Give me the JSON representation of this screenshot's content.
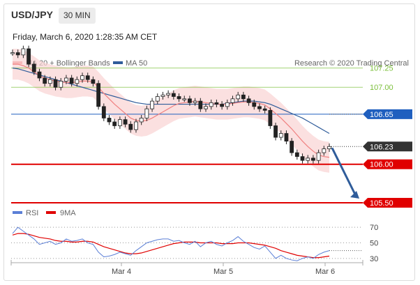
{
  "header": {
    "symbol": "USD/JPY",
    "timeframe": "30 MIN",
    "timestamp": "Friday, March 6, 2020 1:28:35 AM CET"
  },
  "legend": {
    "items": [
      {
        "label": "MA 20 + Bollinger Bands",
        "color": "#f08080"
      },
      {
        "label": "MA 50",
        "color": "#2f5c9a"
      }
    ],
    "credit": "Research © 2020 Trading Central"
  },
  "rsi_legend": {
    "items": [
      {
        "label": "RSI",
        "color": "#5b7fd6"
      },
      {
        "label": "9MA",
        "color": "#e00000"
      }
    ]
  },
  "chart_data": [
    {
      "type": "line",
      "pane": "price",
      "x_ticks": [
        "Mar 4",
        "Mar 5",
        "Mar 6"
      ],
      "ylim": [
        105.4,
        107.5
      ],
      "levels": [
        {
          "value": 107.25,
          "label": "107.25",
          "color": "#7bbf3a",
          "style": "thin"
        },
        {
          "value": 107.0,
          "label": "107.00",
          "color": "#7bbf3a",
          "style": "thin"
        },
        {
          "value": 106.65,
          "label": "106.65",
          "color": "#1f5fbf",
          "style": "tag"
        },
        {
          "value": 106.23,
          "label": "106.23",
          "color": "#333333",
          "style": "tag"
        },
        {
          "value": 106.0,
          "label": "106.00",
          "color": "#e00000",
          "style": "thick"
        },
        {
          "value": 105.5,
          "label": "105.50",
          "color": "#e00000",
          "style": "thick"
        }
      ],
      "close": [
        107.45,
        107.42,
        107.5,
        107.3,
        107.2,
        107.12,
        107.05,
        107.1,
        107.0,
        107.08,
        107.12,
        107.05,
        107.1,
        107.15,
        107.1,
        107.05,
        106.75,
        106.6,
        106.55,
        106.5,
        106.58,
        106.52,
        106.45,
        106.55,
        106.6,
        106.72,
        106.82,
        106.88,
        106.9,
        106.92,
        106.88,
        106.85,
        106.85,
        106.8,
        106.82,
        106.72,
        106.75,
        106.8,
        106.78,
        106.75,
        106.8,
        106.85,
        106.9,
        106.85,
        106.8,
        106.75,
        106.72,
        106.7,
        106.5,
        106.35,
        106.4,
        106.3,
        106.15,
        106.1,
        106.05,
        106.08,
        106.05,
        106.15,
        106.2,
        106.23
      ],
      "ma20": [
        107.3,
        107.3,
        107.28,
        107.25,
        107.2,
        107.15,
        107.12,
        107.1,
        107.08,
        107.07,
        107.06,
        107.06,
        107.07,
        107.08,
        107.08,
        107.07,
        107.0,
        106.92,
        106.85,
        106.78,
        106.72,
        106.66,
        106.6,
        106.57,
        106.56,
        106.57,
        106.6,
        106.64,
        106.68,
        106.72,
        106.76,
        106.79,
        106.8,
        106.81,
        106.82,
        106.81,
        106.8,
        106.79,
        106.78,
        106.78,
        106.78,
        106.79,
        106.8,
        106.81,
        106.81,
        106.8,
        106.79,
        106.77,
        106.72,
        106.66,
        106.6,
        106.53,
        106.46,
        106.38,
        106.3,
        106.23,
        106.17,
        106.12,
        106.1,
        106.09
      ],
      "ma50": [
        107.25,
        107.24,
        107.22,
        107.2,
        107.18,
        107.16,
        107.14,
        107.12,
        107.1,
        107.08,
        107.06,
        107.04,
        107.02,
        107.0,
        106.98,
        106.96,
        106.94,
        106.92,
        106.9,
        106.88,
        106.86,
        106.84,
        106.82,
        106.8,
        106.79,
        106.78,
        106.78,
        106.78,
        106.78,
        106.78,
        106.78,
        106.78,
        106.78,
        106.78,
        106.78,
        106.78,
        106.78,
        106.78,
        106.78,
        106.78,
        106.79,
        106.8,
        106.81,
        106.82,
        106.82,
        106.82,
        106.81,
        106.8,
        106.78,
        106.75,
        106.72,
        106.69,
        106.66,
        106.63,
        106.6,
        106.56,
        106.52,
        106.48,
        106.44,
        106.4
      ],
      "band_width": 0.2
    },
    {
      "type": "line",
      "pane": "rsi",
      "ylim": [
        20,
        80
      ],
      "levels": [
        70,
        50,
        30
      ],
      "series": [
        {
          "name": "RSI",
          "values": [
            62,
            70,
            65,
            60,
            55,
            48,
            50,
            52,
            48,
            50,
            55,
            52,
            53,
            55,
            50,
            48,
            38,
            32,
            33,
            35,
            38,
            36,
            34,
            40,
            45,
            50,
            52,
            54,
            55,
            55,
            52,
            53,
            50,
            48,
            52,
            45,
            50,
            52,
            48,
            46,
            50,
            53,
            58,
            52,
            48,
            44,
            42,
            46,
            38,
            30,
            34,
            30,
            28,
            27,
            30,
            32,
            30,
            35,
            38,
            40
          ]
        },
        {
          "name": "9MA",
          "values": [
            60,
            62,
            62,
            61,
            59,
            57,
            56,
            55,
            53,
            52,
            52,
            51,
            51,
            52,
            52,
            51,
            48,
            45,
            43,
            41,
            39,
            37,
            36,
            36,
            37,
            39,
            41,
            43,
            45,
            47,
            49,
            50,
            51,
            51,
            51,
            50,
            50,
            50,
            50,
            49,
            49,
            49,
            50,
            50,
            50,
            49,
            48,
            47,
            45,
            43,
            40,
            38,
            36,
            34,
            33,
            32,
            31,
            31,
            32,
            33
          ]
        }
      ]
    }
  ]
}
